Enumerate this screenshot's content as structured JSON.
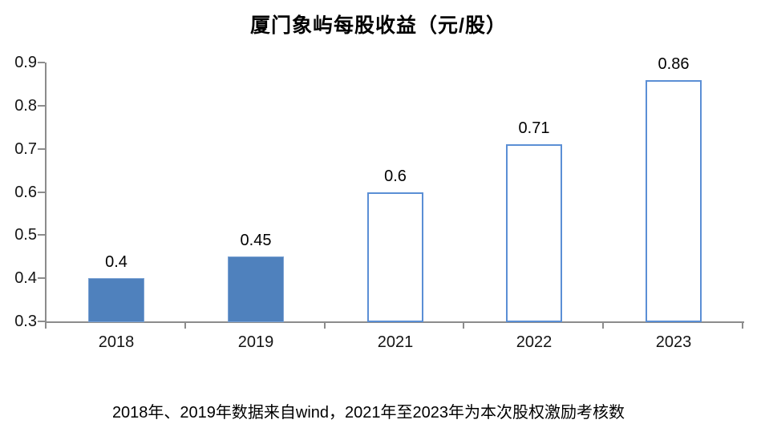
{
  "title": "厦门象屿每股收益（元/股）",
  "note": "2018年、2019年数据来自wind，2021年至2023年为本次股权激励考核数",
  "colors": {
    "bar_fill": "#4f81bd",
    "bar_fill_border": "#7ba2d4",
    "bar_outline_border": "#5b8fd5",
    "axis": "#8c8c8c",
    "text": "#000000"
  },
  "chart_data": {
    "type": "bar",
    "title": "厦门象屿每股收益（元/股）",
    "categories": [
      "2018",
      "2019",
      "2021",
      "2022",
      "2023"
    ],
    "values": [
      0.4,
      0.45,
      0.6,
      0.71,
      0.86
    ],
    "value_labels": [
      "0.4",
      "0.45",
      "0.6",
      "0.71",
      "0.86"
    ],
    "bar_styles": [
      "filled",
      "filled",
      "outline",
      "outline",
      "outline"
    ],
    "xlabel": "",
    "ylabel": "",
    "ylim": [
      0.3,
      0.9
    ],
    "yticks": [
      "0.3",
      "0.4",
      "0.5",
      "0.6",
      "0.7",
      "0.8",
      "0.9"
    ],
    "grid": false,
    "legend": false,
    "annotation": "2018年、2019年数据来自wind，2021年至2023年为本次股权激励考核数"
  }
}
